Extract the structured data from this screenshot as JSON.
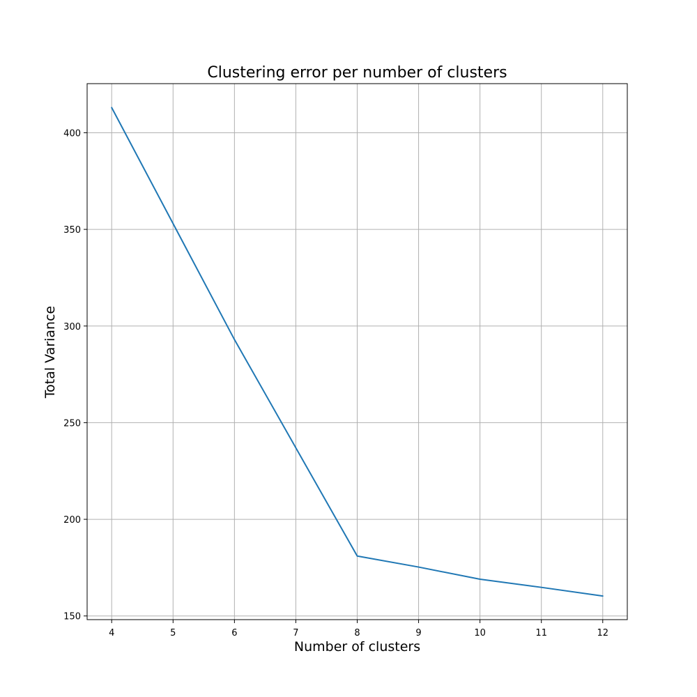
{
  "chart_data": {
    "type": "line",
    "title": "Clustering error per number of clusters",
    "xlabel": "Number of clusters",
    "ylabel": "Total Variance",
    "x": [
      4,
      5,
      6,
      7,
      8,
      9,
      10,
      11,
      12
    ],
    "series": [
      {
        "values": [
          413,
          353,
          293,
          237,
          181,
          175.3,
          169,
          164.8,
          160.3
        ],
        "color": "#1f77b4"
      }
    ],
    "xlim": [
      3.6,
      12.4
    ],
    "ylim": [
      148.1,
      425.4
    ],
    "xticks": [
      4,
      5,
      6,
      7,
      8,
      9,
      10,
      11,
      12
    ],
    "yticks": [
      150,
      200,
      250,
      300,
      350,
      400
    ],
    "grid": true,
    "legend": "none"
  }
}
